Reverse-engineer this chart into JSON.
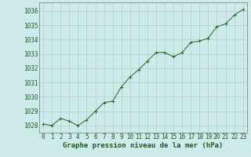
{
  "x": [
    0,
    1,
    2,
    3,
    4,
    5,
    6,
    7,
    8,
    9,
    10,
    11,
    12,
    13,
    14,
    15,
    16,
    17,
    18,
    19,
    20,
    21,
    22,
    23
  ],
  "y": [
    1028.1,
    1028.0,
    1028.5,
    1028.3,
    1028.0,
    1028.4,
    1029.0,
    1029.6,
    1029.7,
    1030.7,
    1031.4,
    1031.9,
    1032.5,
    1033.1,
    1033.1,
    1032.8,
    1033.1,
    1033.8,
    1033.9,
    1034.1,
    1034.9,
    1035.1,
    1035.7,
    1036.1
  ],
  "line_color": "#1a6b1a",
  "marker_color": "#1a6b1a",
  "bg_color": "#ceeaea",
  "grid_color": "#a8d0d0",
  "xlabel": "Graphe pression niveau de la mer (hPa)",
  "xlabel_color": "#1a5c1a",
  "tick_color": "#1a5c1a",
  "ylim_min": 1027.5,
  "ylim_max": 1036.6,
  "yticks": [
    1028,
    1029,
    1030,
    1031,
    1032,
    1033,
    1034,
    1035,
    1036
  ],
  "xticks": [
    0,
    1,
    2,
    3,
    4,
    5,
    6,
    7,
    8,
    9,
    10,
    11,
    12,
    13,
    14,
    15,
    16,
    17,
    18,
    19,
    20,
    21,
    22,
    23
  ],
  "tick_fontsize": 5.5,
  "xlabel_fontsize": 6.5
}
